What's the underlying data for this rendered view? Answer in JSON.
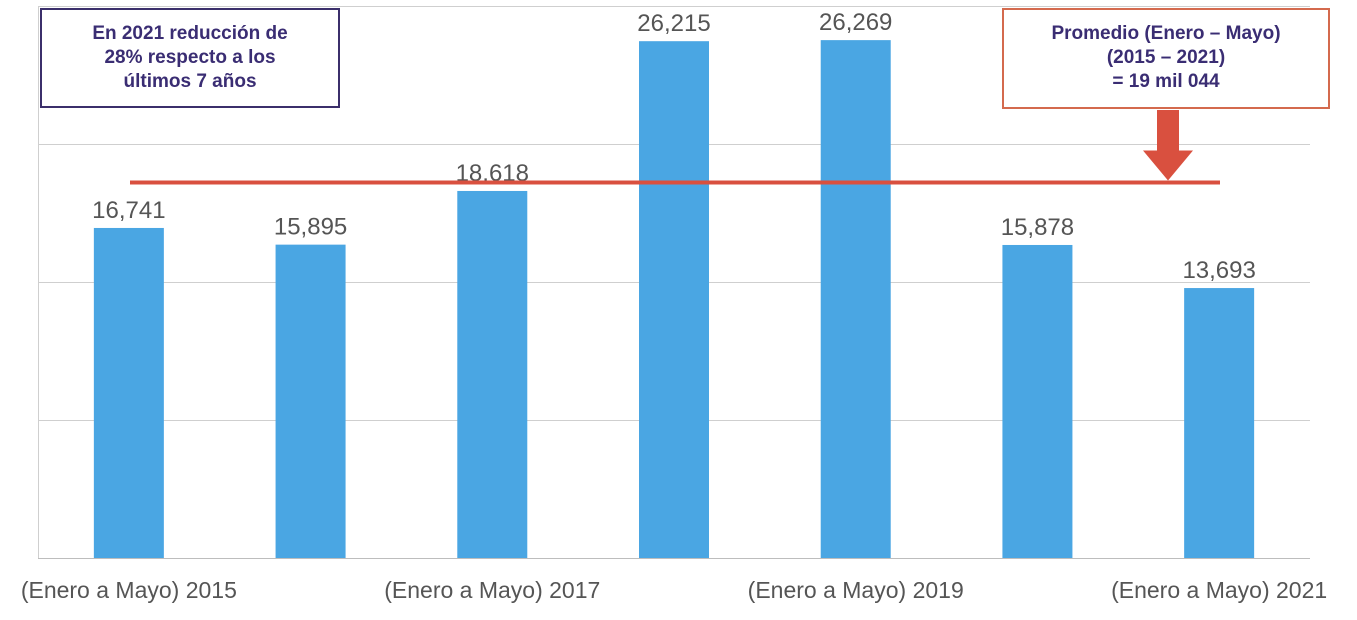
{
  "chart_data": {
    "type": "bar",
    "categories": [
      "(Enero a Mayo) 2015",
      "",
      "(Enero a Mayo) 2017",
      "",
      "(Enero a Mayo) 2019",
      "",
      "(Enero a Mayo) 2021"
    ],
    "values": [
      16741,
      15895,
      18618,
      26215,
      26269,
      15878,
      13693
    ],
    "value_labels": [
      "16,741",
      "15,895",
      "18,618",
      "26,215",
      "26,269",
      "15,878",
      "13,693"
    ],
    "average": 19044,
    "ylim": [
      0,
      28000
    ],
    "grid": true,
    "bar_color": "#4aa6e3",
    "average_line_color": "#d9503f"
  },
  "annotations": {
    "left_box": {
      "lines": [
        "En 2021 reducción de",
        "28% respecto a los",
        "últimos 7 años"
      ],
      "text_color": "#3a2d73",
      "border_color": "#3b2f6b"
    },
    "right_box": {
      "lines": [
        "Promedio (Enero – Mayo)",
        "(2015 – 2021)",
        "= 19 mil 044"
      ],
      "text_color": "#3a2d73",
      "border_color": "#d46a4e",
      "arrow_color": "#d9503f"
    }
  }
}
